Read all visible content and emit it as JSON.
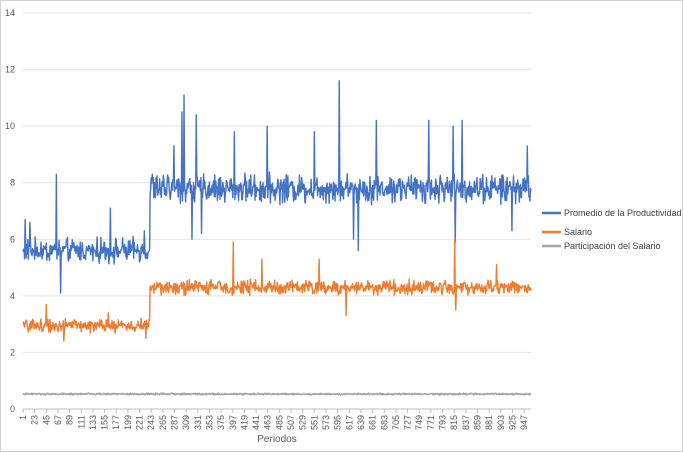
{
  "chart_data": {
    "type": "line",
    "title": "",
    "xlabel": "Periodos",
    "ylabel": "",
    "ylim": [
      0,
      14
    ],
    "yticks": [
      0,
      2,
      4,
      6,
      8,
      10,
      12,
      14
    ],
    "xlim": [
      1,
      960
    ],
    "xticks": [
      1,
      23,
      45,
      67,
      89,
      111,
      133,
      155,
      177,
      199,
      221,
      243,
      265,
      287,
      309,
      331,
      353,
      375,
      397,
      419,
      441,
      463,
      485,
      507,
      529,
      551,
      573,
      595,
      617,
      639,
      661,
      683,
      705,
      727,
      749,
      771,
      793,
      815,
      837,
      859,
      881,
      903,
      925,
      947
    ],
    "grid": true,
    "legend": "right",
    "series": [
      {
        "name": "Promedio de la Productividad",
        "color": "#4472c4",
        "segments": [
          {
            "from": 1,
            "to": 240,
            "mean": 5.6,
            "amp": 0.5
          },
          {
            "from": 241,
            "to": 960,
            "mean": 7.8,
            "amp": 0.6
          }
        ],
        "peaks": [
          [
            5,
            6.7
          ],
          [
            14,
            6.6
          ],
          [
            64,
            8.3
          ],
          [
            72,
            4.1
          ],
          [
            166,
            7.1
          ],
          [
            230,
            6.3
          ],
          [
            245,
            8.3
          ],
          [
            286,
            9.3
          ],
          [
            301,
            10.5
          ],
          [
            305,
            11.1
          ],
          [
            320,
            6.0
          ],
          [
            328,
            10.4
          ],
          [
            338,
            6.2
          ],
          [
            400,
            9.8
          ],
          [
            462,
            10.0
          ],
          [
            551,
            9.8
          ],
          [
            598,
            11.6
          ],
          [
            625,
            6.0
          ],
          [
            634,
            5.6
          ],
          [
            668,
            10.2
          ],
          [
            767,
            10.2
          ],
          [
            813,
            10.0
          ],
          [
            817,
            5.9
          ],
          [
            830,
            10.2
          ],
          [
            924,
            6.3
          ],
          [
            953,
            9.3
          ]
        ]
      },
      {
        "name": "Salario",
        "color": "#ed7d31",
        "segments": [
          {
            "from": 1,
            "to": 240,
            "mean": 2.95,
            "amp": 0.28
          },
          {
            "from": 241,
            "to": 960,
            "mean": 4.3,
            "amp": 0.3
          }
        ],
        "peaks": [
          [
            45,
            3.7
          ],
          [
            78,
            2.4
          ],
          [
            162,
            3.4
          ],
          [
            233,
            2.5
          ],
          [
            398,
            5.9
          ],
          [
            452,
            5.3
          ],
          [
            560,
            5.3
          ],
          [
            611,
            3.3
          ],
          [
            816,
            6.0
          ],
          [
            818,
            3.5
          ],
          [
            895,
            5.1
          ]
        ]
      },
      {
        "name": "Participación del Salario",
        "color": "#a5a5a5",
        "segments": [
          {
            "from": 1,
            "to": 960,
            "mean": 0.53,
            "amp": 0.035
          }
        ],
        "peaks": []
      }
    ]
  }
}
